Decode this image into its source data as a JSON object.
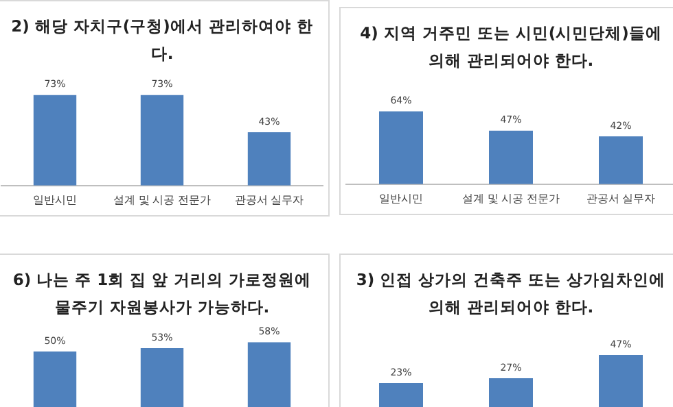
{
  "chart_data": [
    {
      "type": "bar",
      "title": "2) 해당 자치구(구청)에서 관리하여야 한다.",
      "categories": [
        "일반시민",
        "설계 및 시공 전문가",
        "관공서 실무자"
      ],
      "values": [
        73,
        73,
        43
      ],
      "value_labels": [
        "73%",
        "73%",
        "43%"
      ],
      "color": "#4f81bd"
    },
    {
      "type": "bar",
      "title": "4) 지역 거주민 또는 시민(시민단체)들에 의해 관리되어야 한다.",
      "categories": [
        "일반시민",
        "설계 및 시공 전문가",
        "관공서 실무자"
      ],
      "values": [
        64,
        47,
        42
      ],
      "value_labels": [
        "64%",
        "47%",
        "42%"
      ],
      "color": "#4f81bd"
    },
    {
      "type": "bar",
      "title": "6) 나는 주 1회 집 앞 거리의 가로정원에 물주기 자원봉사가 가능하다.",
      "categories": [
        null,
        null,
        null
      ],
      "values": [
        50,
        53,
        58
      ],
      "value_labels": [
        "50%",
        "53%",
        "58%"
      ],
      "color": "#4f81bd"
    },
    {
      "type": "bar",
      "title": "3) 인접 상가의 건축주 또는 상가임차인에 의해 관리되어야 한다.",
      "categories": [
        null,
        null,
        null
      ],
      "values": [
        23,
        27,
        47
      ],
      "value_labels": [
        "23%",
        "27%",
        "47%"
      ],
      "color": "#4f81bd"
    }
  ]
}
